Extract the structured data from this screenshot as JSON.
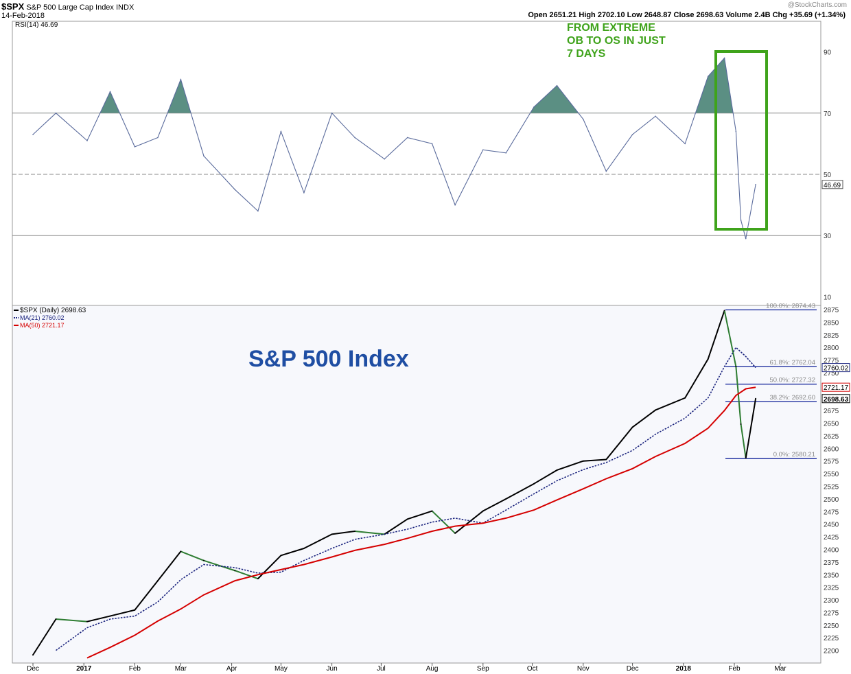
{
  "header": {
    "symbol": "$SPX",
    "name": "S&P 500 Large Cap Index",
    "exchange": "INDX",
    "date": "14-Feb-2018",
    "quote": "Open 2651.21  High 2702.10  Low 2648.87  Close 2698.63  Volume 2.4B  Chg +35.69 (+1.34%)",
    "watermark": "@StockCharts.com"
  },
  "annotation": [
    "FROM EXTREME",
    "OB TO OS IN JUST",
    "7 DAYS"
  ],
  "main_title": "S&P 500 Index",
  "chart_data": [
    {
      "type": "line",
      "legend": "RSI(14) 46.69",
      "yticks": [
        10,
        30,
        50,
        70,
        90
      ],
      "ylim": [
        0,
        100
      ],
      "reference_lines": [
        30,
        50,
        70
      ],
      "last_value_label": "46.69",
      "x": [
        "2016-12-01",
        "2016-12-15",
        "2017-01-03",
        "2017-01-17",
        "2017-02-01",
        "2017-02-15",
        "2017-03-01",
        "2017-03-15",
        "2017-04-03",
        "2017-04-17",
        "2017-05-01",
        "2017-05-15",
        "2017-06-01",
        "2017-06-15",
        "2017-07-03",
        "2017-07-17",
        "2017-08-01",
        "2017-08-15",
        "2017-09-01",
        "2017-09-15",
        "2017-10-02",
        "2017-10-16",
        "2017-11-01",
        "2017-11-15",
        "2017-12-01",
        "2017-12-15",
        "2018-01-02",
        "2018-01-16",
        "2018-01-26",
        "2018-02-02",
        "2018-02-05",
        "2018-02-08",
        "2018-02-14"
      ],
      "values": [
        63,
        70,
        61,
        77,
        59,
        62,
        81,
        56,
        45,
        38,
        64,
        44,
        70,
        62,
        55,
        62,
        60,
        40,
        58,
        57,
        72,
        79,
        68,
        51,
        63,
        69,
        60,
        82,
        88,
        64,
        35,
        29,
        46.69
      ]
    },
    {
      "type": "line",
      "legend": [
        "$SPX (Daily) 2698.63",
        "MA(21) 2760.02",
        "MA(50) 2721.17"
      ],
      "yticks": [
        2200,
        2225,
        2250,
        2275,
        2300,
        2325,
        2350,
        2375,
        2400,
        2425,
        2450,
        2475,
        2500,
        2525,
        2550,
        2575,
        2600,
        2625,
        2650,
        2675,
        2700,
        2725,
        2750,
        2775,
        2800,
        2825,
        2850,
        2875
      ],
      "ylim": [
        2175,
        2900
      ],
      "xtick_labels": [
        "Dec",
        "2017",
        "Feb",
        "Mar",
        "Apr",
        "May",
        "Jun",
        "Jul",
        "Aug",
        "Sep",
        "Oct",
        "Nov",
        "Dec",
        "2018",
        "Feb",
        "Mar"
      ],
      "series": [
        {
          "name": "$SPX (Daily) 2698.63",
          "color": "#000000",
          "x": [
            "2016-12-01",
            "2016-12-15",
            "2017-01-03",
            "2017-01-17",
            "2017-02-01",
            "2017-02-15",
            "2017-03-01",
            "2017-03-15",
            "2017-04-03",
            "2017-04-17",
            "2017-05-01",
            "2017-05-15",
            "2017-06-01",
            "2017-06-15",
            "2017-07-03",
            "2017-07-17",
            "2017-08-01",
            "2017-08-15",
            "2017-09-01",
            "2017-09-15",
            "2017-10-02",
            "2017-10-16",
            "2017-11-01",
            "2017-11-15",
            "2017-12-01",
            "2017-12-15",
            "2018-01-02",
            "2018-01-16",
            "2018-01-26",
            "2018-02-02",
            "2018-02-05",
            "2018-02-08",
            "2018-02-14"
          ],
          "values": [
            2191,
            2262,
            2257,
            2268,
            2280,
            2338,
            2396,
            2378,
            2358,
            2342,
            2388,
            2402,
            2430,
            2436,
            2430,
            2460,
            2476,
            2432,
            2476,
            2500,
            2530,
            2557,
            2575,
            2578,
            2642,
            2676,
            2700,
            2777,
            2873,
            2762,
            2648,
            2581,
            2698.63
          ]
        },
        {
          "name": "MA(21) 2760.02",
          "color": "#1a237e",
          "x": [
            "2016-12-15",
            "2017-01-03",
            "2017-01-17",
            "2017-02-01",
            "2017-02-15",
            "2017-03-01",
            "2017-03-15",
            "2017-04-03",
            "2017-04-17",
            "2017-05-01",
            "2017-05-15",
            "2017-06-01",
            "2017-06-15",
            "2017-07-03",
            "2017-07-17",
            "2017-08-01",
            "2017-08-15",
            "2017-09-01",
            "2017-09-15",
            "2017-10-02",
            "2017-10-16",
            "2017-11-01",
            "2017-11-15",
            "2017-12-01",
            "2017-12-15",
            "2018-01-02",
            "2018-01-16",
            "2018-01-26",
            "2018-02-02",
            "2018-02-08",
            "2018-02-14"
          ],
          "values": [
            2200,
            2245,
            2262,
            2268,
            2296,
            2340,
            2370,
            2364,
            2353,
            2355,
            2378,
            2402,
            2420,
            2430,
            2440,
            2454,
            2462,
            2452,
            2478,
            2510,
            2536,
            2558,
            2572,
            2596,
            2628,
            2660,
            2700,
            2762,
            2800,
            2782,
            2760.02
          ]
        },
        {
          "name": "MA(50) 2721.17",
          "color": "#d50000",
          "x": [
            "2017-01-03",
            "2017-01-17",
            "2017-02-01",
            "2017-02-15",
            "2017-03-01",
            "2017-03-15",
            "2017-04-03",
            "2017-04-17",
            "2017-05-01",
            "2017-05-15",
            "2017-06-01",
            "2017-06-15",
            "2017-07-03",
            "2017-07-17",
            "2017-08-01",
            "2017-08-15",
            "2017-09-01",
            "2017-09-15",
            "2017-10-02",
            "2017-10-16",
            "2017-11-01",
            "2017-11-15",
            "2017-12-01",
            "2017-12-15",
            "2018-01-02",
            "2018-01-16",
            "2018-01-26",
            "2018-02-02",
            "2018-02-08",
            "2018-02-14"
          ],
          "values": [
            2185,
            2206,
            2230,
            2258,
            2282,
            2310,
            2338,
            2350,
            2360,
            2370,
            2385,
            2398,
            2410,
            2422,
            2436,
            2446,
            2452,
            2462,
            2478,
            2498,
            2520,
            2540,
            2560,
            2584,
            2610,
            2640,
            2675,
            2705,
            2718,
            2721.17
          ]
        }
      ],
      "fibonacci": [
        {
          "label": "100.0%: 2874.43",
          "value": 2874.43
        },
        {
          "label": "61.8%: 2762.04",
          "value": 2762.04
        },
        {
          "label": "50.0%: 2727.32",
          "value": 2727.32
        },
        {
          "label": "38.2%: 2692.60",
          "value": 2692.6
        },
        {
          "label": "0.0%: 2580.21",
          "value": 2580.21
        }
      ],
      "last_value_labels": [
        "2760.02",
        "2721.17",
        "2698.63"
      ]
    }
  ],
  "colors": {
    "rsi_line": "#5a6b9c",
    "ob_fill": "#5b8f83",
    "box": "#3fa31b",
    "fib": "#1f2f9f",
    "up": "#000000",
    "down": "#2e7d32"
  }
}
